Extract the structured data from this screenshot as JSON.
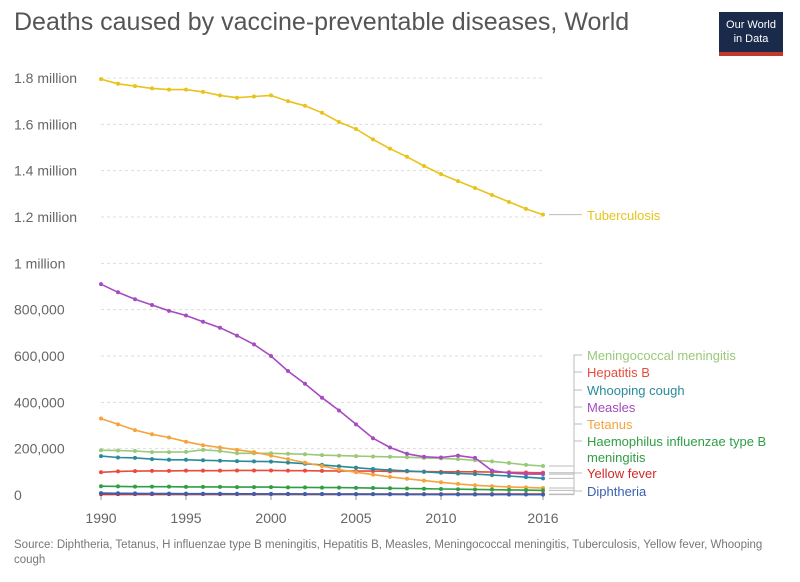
{
  "title": "Deaths caused by vaccine-preventable diseases, World",
  "logo": {
    "line1": "Our World",
    "line2": "in Data"
  },
  "source": "Source: Diphtheria, Tetanus, H influenzae type B meningitis, Hepatitis B, Measles, Meningococcal meningitis, Tuberculosis, Yellow fever, Whooping cough",
  "chart_data": {
    "type": "line",
    "title": "Deaths caused by vaccine-preventable diseases, World",
    "xlabel": "",
    "ylabel": "",
    "xlim": [
      1990,
      2016
    ],
    "ylim": [
      0,
      1800000
    ],
    "x_ticks": [
      {
        "value": 1990,
        "label": "1990"
      },
      {
        "value": 1995,
        "label": "1995"
      },
      {
        "value": 2000,
        "label": "2000"
      },
      {
        "value": 2005,
        "label": "2005"
      },
      {
        "value": 2010,
        "label": "2010"
      },
      {
        "value": 2016,
        "label": "2016"
      }
    ],
    "y_ticks": [
      {
        "value": 0,
        "label": "0"
      },
      {
        "value": 200000,
        "label": "200,000"
      },
      {
        "value": 400000,
        "label": "400,000"
      },
      {
        "value": 600000,
        "label": "600,000"
      },
      {
        "value": 800000,
        "label": "800,000"
      },
      {
        "value": 1000000,
        "label": "1 million"
      },
      {
        "value": 1200000,
        "label": "1.2 million"
      },
      {
        "value": 1400000,
        "label": "1.4 million"
      },
      {
        "value": 1600000,
        "label": "1.6 million"
      },
      {
        "value": 1800000,
        "label": "1.8 million"
      }
    ],
    "grid": "horizontal-dotted",
    "legend": "right-end-labels",
    "x": [
      1990,
      1991,
      1992,
      1993,
      1994,
      1995,
      1996,
      1997,
      1998,
      1999,
      2000,
      2001,
      2002,
      2003,
      2004,
      2005,
      2006,
      2007,
      2008,
      2009,
      2010,
      2011,
      2012,
      2013,
      2014,
      2015,
      2016
    ],
    "series": [
      {
        "name": "Tuberculosis",
        "color": "#e8c31a",
        "label_lines": [
          "Tuberculosis"
        ],
        "values": [
          1795000,
          1775000,
          1765000,
          1755000,
          1750000,
          1750000,
          1740000,
          1725000,
          1715000,
          1720000,
          1725000,
          1700000,
          1680000,
          1650000,
          1610000,
          1580000,
          1535000,
          1495000,
          1460000,
          1420000,
          1385000,
          1355000,
          1325000,
          1295000,
          1265000,
          1235000,
          1210000
        ]
      },
      {
        "name": "Meningococcal meningitis",
        "color": "#9ac97a",
        "label_lines": [
          "Meningococcal meningitis"
        ],
        "values": [
          193000,
          192000,
          190000,
          185000,
          185000,
          186000,
          195000,
          190000,
          180000,
          180000,
          180000,
          178000,
          176000,
          172000,
          170000,
          168000,
          166000,
          165000,
          163000,
          160000,
          158000,
          155000,
          150000,
          145000,
          138000,
          130000,
          125000
        ]
      },
      {
        "name": "Hepatitis B",
        "color": "#e74c3c",
        "label_lines": [
          "Hepatitis B"
        ],
        "values": [
          98000,
          102000,
          103000,
          104000,
          104000,
          105000,
          105000,
          105000,
          106000,
          106000,
          106000,
          105000,
          105000,
          104000,
          104000,
          103000,
          103000,
          102000,
          102000,
          101000,
          100000,
          100000,
          100000,
          99000,
          98000,
          97000,
          96000
        ]
      },
      {
        "name": "Whooping cough",
        "color": "#2a8a9a",
        "label_lines": [
          "Whooping cough"
        ],
        "values": [
          168000,
          162000,
          160000,
          155000,
          152000,
          152000,
          150000,
          148000,
          146000,
          145000,
          144000,
          140000,
          135000,
          130000,
          124000,
          118000,
          112000,
          108000,
          104000,
          100000,
          96000,
          93000,
          90000,
          86000,
          82000,
          77000,
          72000
        ]
      },
      {
        "name": "Measles",
        "color": "#a64bc0",
        "label_lines": [
          "Measles"
        ],
        "values": [
          910000,
          875000,
          845000,
          820000,
          795000,
          775000,
          748000,
          722000,
          688000,
          650000,
          600000,
          535000,
          480000,
          420000,
          365000,
          305000,
          245000,
          205000,
          178000,
          165000,
          162000,
          170000,
          160000,
          105000,
          95000,
          90000,
          90000
        ]
      },
      {
        "name": "Tetanus",
        "color": "#f5a33c",
        "label_lines": [
          "Tetanus"
        ],
        "values": [
          330000,
          305000,
          280000,
          262000,
          248000,
          230000,
          215000,
          205000,
          195000,
          185000,
          170000,
          155000,
          140000,
          125000,
          110000,
          98000,
          88000,
          78000,
          70000,
          62000,
          55000,
          48000,
          42000,
          38000,
          35000,
          33000,
          30000
        ]
      },
      {
        "name": "Haemophilus influenzae type B meningitis",
        "color": "#2f9e44",
        "label_lines": [
          "Haemophilus influenzae type B",
          "meningitis"
        ],
        "values": [
          38000,
          37000,
          36000,
          36000,
          36000,
          35000,
          35000,
          35000,
          34000,
          34000,
          34000,
          33000,
          33000,
          32000,
          32000,
          31000,
          30000,
          29000,
          28000,
          27000,
          26000,
          25000,
          24000,
          23000,
          22000,
          21000,
          20000
        ]
      },
      {
        "name": "Yellow fever",
        "color": "#d62728",
        "label_lines": [
          "Yellow fever"
        ],
        "values": [
          4000,
          4000,
          4000,
          4000,
          4000,
          4000,
          4000,
          4000,
          4000,
          4000,
          4000,
          4000,
          4000,
          4000,
          4000,
          4000,
          4000,
          4000,
          4000,
          4000,
          4000,
          4000,
          4000,
          4000,
          4000,
          4000,
          4000
        ]
      },
      {
        "name": "Diphtheria",
        "color": "#3a5fb0",
        "label_lines": [
          "Diphtheria"
        ],
        "values": [
          8000,
          7500,
          7000,
          6500,
          6000,
          5800,
          5600,
          5400,
          5200,
          5000,
          4800,
          4600,
          4400,
          4200,
          4000,
          3800,
          3600,
          3400,
          3200,
          3000,
          2800,
          2600,
          2400,
          2200,
          2000,
          1900,
          1800
        ]
      }
    ]
  }
}
